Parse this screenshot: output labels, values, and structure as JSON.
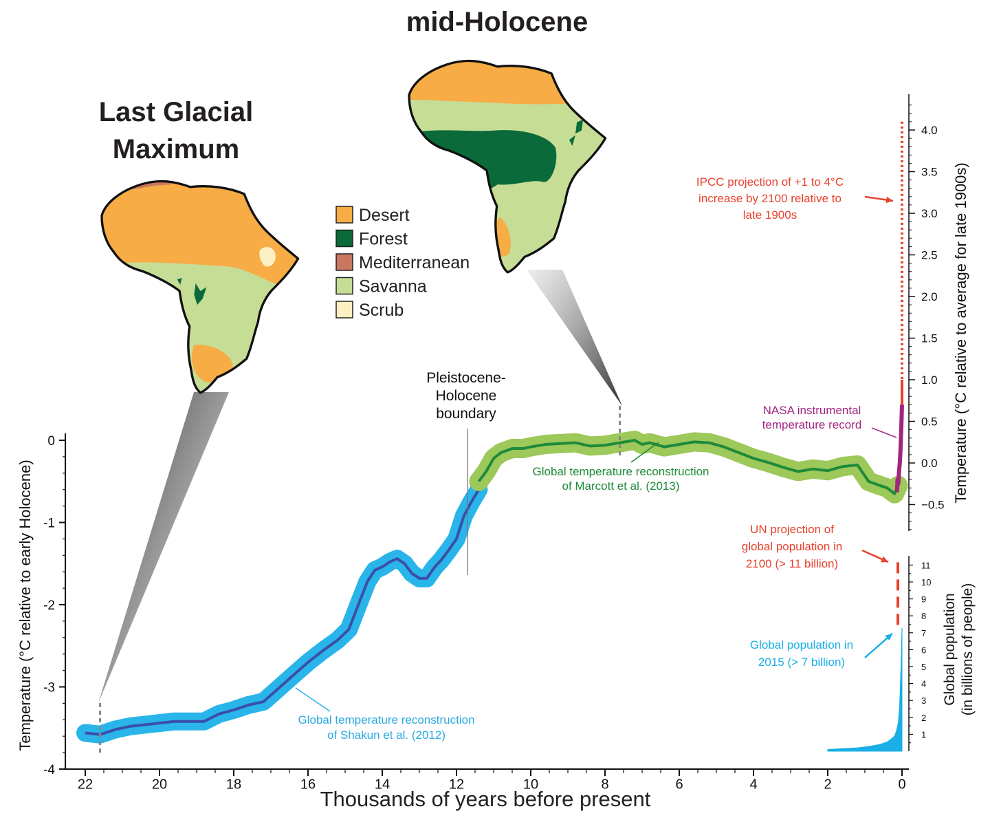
{
  "maps": {
    "lgm_title_lines": [
      "Last Glacial",
      "Maximum"
    ],
    "holocene_title": "mid-Holocene"
  },
  "legend": [
    {
      "label": "Desert",
      "color": "#F7AC45"
    },
    {
      "label": "Forest",
      "color": "#0B6A3A"
    },
    {
      "label": "Mediterranean",
      "color": "#C9775F"
    },
    {
      "label": "Savanna",
      "color": "#C6DD96"
    },
    {
      "label": "Scrub",
      "color": "#FCEFC1"
    }
  ],
  "annotations": {
    "boundary_lines": [
      "Pleistocene-",
      "Holocene",
      "boundary"
    ],
    "shakun_lines": [
      "Global temperature reconstruction",
      "of Shakun et al. (2012)"
    ],
    "marcott_lines": [
      "Global temperature reconstruction",
      "of Marcott et al. (2013)"
    ],
    "nasa_lines": [
      "NASA instrumental",
      "temperature record"
    ],
    "ipcc_lines": [
      "IPCC projection of +1 to 4°C",
      "increase by 2100 relative to",
      "late 1900s"
    ],
    "un_lines": [
      "UN projection of",
      "global population in",
      "2100 (> 11 billion)"
    ],
    "pop2015_lines": [
      "Global population in",
      "2015 (> 7 billion)"
    ]
  },
  "colors": {
    "shakun_band": "#29B5EA",
    "shakun_line": "#3A4FA8",
    "marcott_band": "#9DC85A",
    "marcott_line": "#1E8A3A",
    "nasa": "#A0267F",
    "projection": "#E8412C",
    "population": "#1AAFE6",
    "callout_gradient_dark": "#1a1a1a"
  },
  "chart_data": [
    {
      "type": "line",
      "title": "",
      "xlabel": "Thousands of years before present",
      "ylabel": "Temperature (°C relative to early Holocene)",
      "xlim": [
        22,
        0
      ],
      "ylim": [
        -4,
        0
      ],
      "x_ticks": [
        "22",
        "20",
        "18",
        "16",
        "14",
        "12",
        "10",
        "8",
        "6",
        "4",
        "2",
        "0"
      ],
      "y_ticks": [
        "0",
        "-1",
        "-2",
        "-3",
        "-4"
      ],
      "series": [
        {
          "name": "Global temperature reconstruction of Shakun et al. (2012)",
          "x": [
            22,
            21.6,
            21.2,
            20.8,
            20.4,
            20,
            19.6,
            19.2,
            18.8,
            18.4,
            18,
            17.6,
            17.2,
            16.8,
            16.4,
            16,
            15.6,
            15.2,
            14.9,
            14.6,
            14.4,
            14.2,
            14.0,
            13.8,
            13.6,
            13.4,
            13.2,
            13.0,
            12.8,
            12.6,
            12.4,
            12.2,
            12.0,
            11.8,
            11.6,
            11.4
          ],
          "values": [
            -3.56,
            -3.58,
            -3.52,
            -3.48,
            -3.46,
            -3.44,
            -3.42,
            -3.42,
            -3.42,
            -3.33,
            -3.28,
            -3.22,
            -3.18,
            -3.02,
            -2.86,
            -2.7,
            -2.56,
            -2.43,
            -2.3,
            -1.95,
            -1.72,
            -1.58,
            -1.54,
            -1.48,
            -1.44,
            -1.5,
            -1.62,
            -1.68,
            -1.68,
            -1.55,
            -1.45,
            -1.33,
            -1.2,
            -0.92,
            -0.75,
            -0.6
          ]
        },
        {
          "name": "Global temperature reconstruction of Marcott et al. (2013)",
          "x": [
            11.4,
            11.2,
            11.0,
            10.8,
            10.5,
            10.2,
            10.0,
            9.6,
            9.2,
            8.8,
            8.4,
            8.0,
            7.6,
            7.2,
            7.0,
            6.8,
            6.4,
            6.0,
            5.6,
            5.2,
            4.8,
            4.4,
            4.0,
            3.6,
            3.2,
            2.8,
            2.4,
            2.0,
            1.6,
            1.2,
            0.9,
            0.6,
            0.4,
            0.2,
            0.1
          ],
          "values": [
            -0.5,
            -0.38,
            -0.22,
            -0.15,
            -0.1,
            -0.1,
            -0.08,
            -0.05,
            -0.04,
            -0.03,
            -0.07,
            -0.06,
            -0.03,
            0.0,
            -0.05,
            -0.03,
            -0.08,
            -0.05,
            -0.02,
            -0.03,
            -0.08,
            -0.15,
            -0.22,
            -0.27,
            -0.33,
            -0.38,
            -0.35,
            -0.37,
            -0.32,
            -0.3,
            -0.5,
            -0.55,
            -0.58,
            -0.65,
            -0.55
          ]
        }
      ]
    },
    {
      "type": "line",
      "title": "",
      "ylabel": "Temperature (°C relative to average for late 1900s)",
      "ylim": [
        -0.8,
        4.4
      ],
      "y_ticks": [
        "4.0",
        "3.5",
        "3.0",
        "2.5",
        "2.0",
        "1.5",
        "1.0",
        "0.5",
        "0.0",
        "−0.5"
      ],
      "series": [
        {
          "name": "NASA instrumental temperature record",
          "x": [
            0.135,
            0.12,
            0.1,
            0.08,
            0.06,
            0.04,
            0.02,
            0.0
          ],
          "values": [
            -0.35,
            -0.2,
            -0.25,
            -0.1,
            0.0,
            0.15,
            0.4,
            0.7
          ]
        },
        {
          "name": "IPCC projection of +1 to 4°C increase by 2100 relative to late 1900s",
          "x": [
            0.0,
            0.0
          ],
          "values": [
            1.0,
            4.1
          ]
        }
      ]
    },
    {
      "type": "area",
      "title": "",
      "ylabel": "Global population (in billions of people)",
      "ylim": [
        0,
        11.5
      ],
      "y_ticks": [
        "11",
        "10",
        "9",
        "8",
        "7",
        "6",
        "5",
        "4",
        "3",
        "2",
        "1"
      ],
      "series": [
        {
          "name": "Global population in 2015 (> 7 billion)",
          "x": [
            2.0,
            1.6,
            1.2,
            0.9,
            0.6,
            0.4,
            0.3,
            0.2,
            0.15,
            0.1,
            0.07,
            0.05,
            0.03,
            0.015,
            0.0
          ],
          "values": [
            0.1,
            0.15,
            0.2,
            0.28,
            0.4,
            0.55,
            0.7,
            0.9,
            1.2,
            1.7,
            2.5,
            3.5,
            4.8,
            6.0,
            7.3
          ]
        },
        {
          "name": "UN projection of global population in 2100 (> 11 billion)",
          "x": [
            0.0,
            0.0
          ],
          "values": [
            7.3,
            11.2
          ]
        }
      ]
    }
  ]
}
